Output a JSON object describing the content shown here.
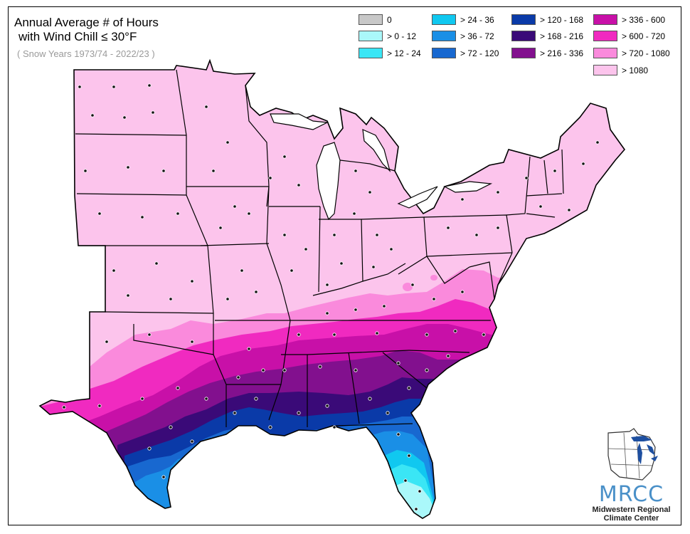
{
  "title": {
    "line1": "Annual Average # of Hours",
    "line2": "with Wind Chill ≤ 30°F",
    "subtitle": "( Snow Years 1973/74 - 2022/23 )"
  },
  "legend": [
    {
      "label": "0",
      "color": "#c8c8c8"
    },
    {
      "label": "> 0 - 12",
      "color": "#aaf8fa"
    },
    {
      "label": "> 12 - 24",
      "color": "#3ae6f5"
    },
    {
      "label": "> 24 - 36",
      "color": "#10c8f0"
    },
    {
      "label": "> 36 - 72",
      "color": "#1a8fe6"
    },
    {
      "label": "> 72 - 120",
      "color": "#1868d0"
    },
    {
      "label": "> 120 - 168",
      "color": "#0a3aa8"
    },
    {
      "label": "> 168 - 216",
      "color": "#3a0a78"
    },
    {
      "label": "> 216 - 336",
      "color": "#82108e"
    },
    {
      "label": "> 336 - 600",
      "color": "#c810a8"
    },
    {
      "label": "> 600 - 720",
      "color": "#f02ac0"
    },
    {
      "label": "> 720 - 1080",
      "color": "#fa8adc"
    },
    {
      "label": "> 1080",
      "color": "#fcc4ec"
    }
  ],
  "logo": {
    "abbr": "MRCC",
    "line1": "Midwestern Regional",
    "line2": "Climate Center"
  }
}
